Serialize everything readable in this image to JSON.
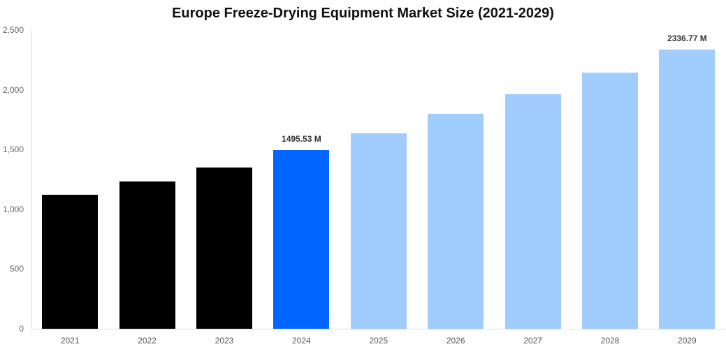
{
  "chart_data": {
    "type": "bar",
    "title": "Europe Freeze-Drying Equipment Market Size (2021-2029)",
    "xlabel": "",
    "ylabel": "",
    "ylim": [
      0,
      2500
    ],
    "yticks": [
      0,
      500,
      1000,
      1500,
      2000,
      2500
    ],
    "ytick_labels": [
      "0",
      "500",
      "1,000",
      "1,500",
      "2,000",
      "2,500"
    ],
    "grid": false,
    "legend": null,
    "categories": [
      "2021",
      "2022",
      "2023",
      "2024",
      "2025",
      "2026",
      "2027",
      "2028",
      "2029"
    ],
    "values": [
      1124,
      1232,
      1352,
      1495.53,
      1638,
      1799,
      1963,
      2144,
      2336.77
    ],
    "bar_colors": [
      "#000000",
      "#000000",
      "#000000",
      "#0066ff",
      "#a0cdfd",
      "#a0cdfd",
      "#a0cdfd",
      "#a0cdfd",
      "#a0cdfd"
    ],
    "annotations": [
      {
        "category": "2024",
        "text": "1495.53 M"
      },
      {
        "category": "2029",
        "text": "2336.77 M"
      }
    ]
  }
}
